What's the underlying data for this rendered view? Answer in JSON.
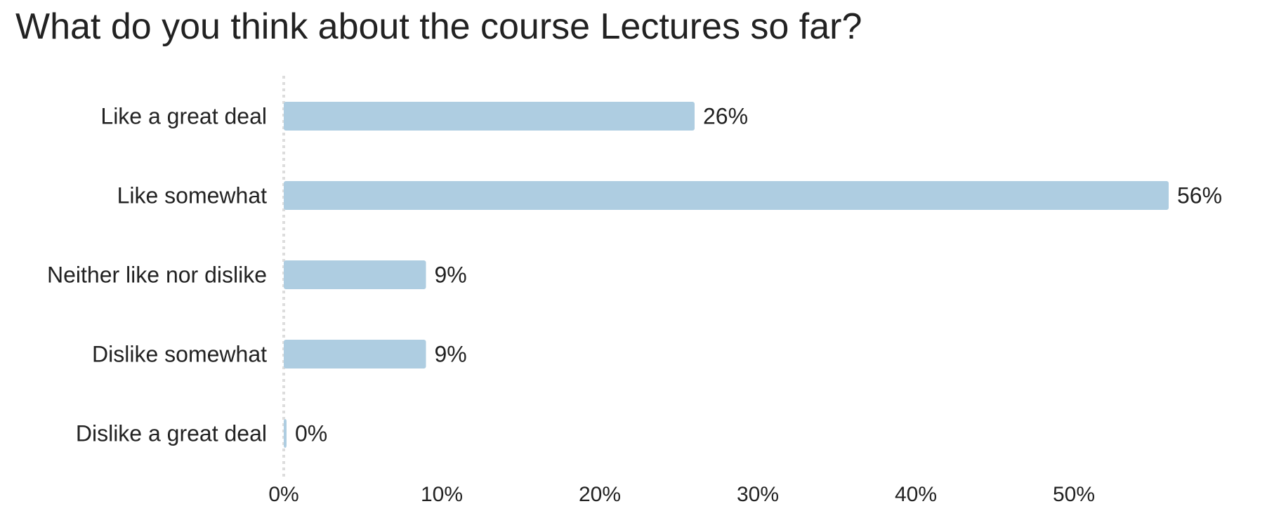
{
  "chart_data": {
    "type": "bar",
    "orientation": "horizontal",
    "title": "What do you think about the course Lectures so far?",
    "categories": [
      "Like a great deal",
      "Like somewhat",
      "Neither like nor dislike",
      "Dislike somewhat",
      "Dislike a great deal"
    ],
    "values": [
      26,
      56,
      9,
      9,
      0
    ],
    "value_labels": [
      "26%",
      "56%",
      "9%",
      "9%",
      "0%"
    ],
    "xlim": [
      0,
      60
    ],
    "x_ticks": [
      0,
      10,
      20,
      30,
      40,
      50
    ],
    "x_tick_labels": [
      "0%",
      "10%",
      "20%",
      "30%",
      "40%",
      "50%"
    ],
    "xlabel": "",
    "ylabel": "",
    "grid": false,
    "bar_color": "#aecde1",
    "zero_line_color": "#dddddd"
  }
}
